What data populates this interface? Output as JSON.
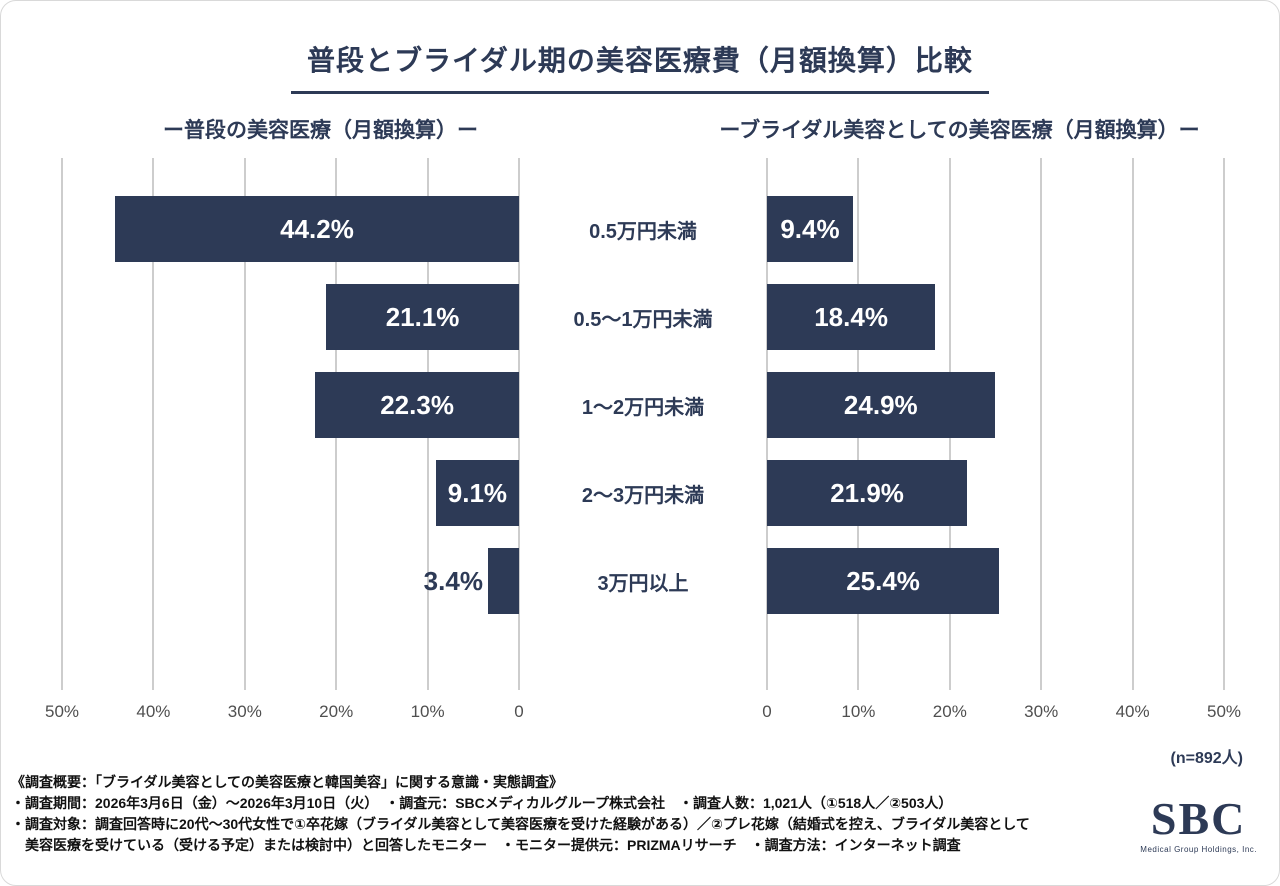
{
  "title": "普段とブライダル期の美容医療費（月額換算）比較",
  "colors": {
    "bar": "#2d3a56",
    "grid": "#cdcdcd",
    "axis_text": "#4f4f4f",
    "footer_text": "#111111"
  },
  "categories": [
    "0.5万円未満",
    "0.5〜1万円未満",
    "1〜2万円未満",
    "2〜3万円未満",
    "3万円以上"
  ],
  "charts": {
    "left": {
      "subtitle": "ー普段の美容医療（月額換算）ー",
      "direction": "rtl",
      "max": 50,
      "axis_ticks": [
        "50%",
        "40%",
        "30%",
        "20%",
        "10%",
        "0"
      ]
    },
    "right": {
      "subtitle": "ーブライダル美容としての美容医療（月額換算）ー",
      "direction": "ltr",
      "max": 50,
      "axis_ticks": [
        "0",
        "10%",
        "20%",
        "30%",
        "40%",
        "50%"
      ]
    }
  },
  "chart_data": {
    "type": "bar",
    "orientation": "horizontal",
    "layout": "butterfly (left axis reversed, shared center category labels)",
    "title": "普段とブライダル期の美容医療費（月額換算）比較",
    "categories": [
      "0.5万円未満",
      "0.5〜1万円未満",
      "1〜2万円未満",
      "2〜3万円未満",
      "3万円以上"
    ],
    "series": [
      {
        "name": "普段の美容医療（月額換算）",
        "values": [
          44.2,
          21.1,
          22.3,
          9.1,
          3.4
        ]
      },
      {
        "name": "ブライダル美容としての美容医療（月額換算）",
        "values": [
          9.4,
          18.4,
          24.9,
          21.9,
          25.4
        ]
      }
    ],
    "xlim": [
      0,
      50
    ],
    "unit": "%",
    "grid": true,
    "sample_size": "n=892人"
  },
  "sample_note": "(n=892人)",
  "footnotes": [
    "《調査概要：「ブライダル美容としての美容医療と韓国美容」に関する意識・実態調査》",
    "・調査期間：2026年3月6日（金）〜2026年3月10日（火）　・調査元：SBCメディカルグループ株式会社　・調査人数：1,021人（①518人／②503人）",
    "・調査対象：調査回答時に20代〜30代女性で①卒花嫁（ブライダル美容として美容医療を受けた経験がある）／②プレ花嫁（結婚式を控え、ブライダル美容として",
    "　美容医療を受けている（受ける予定）または検討中）と回答したモニター　・モニター提供元：PRIZMAリサーチ　・調査方法：インターネット調査"
  ],
  "logo": {
    "text": "SBC",
    "subtext": "Medical Group Holdings, Inc."
  }
}
